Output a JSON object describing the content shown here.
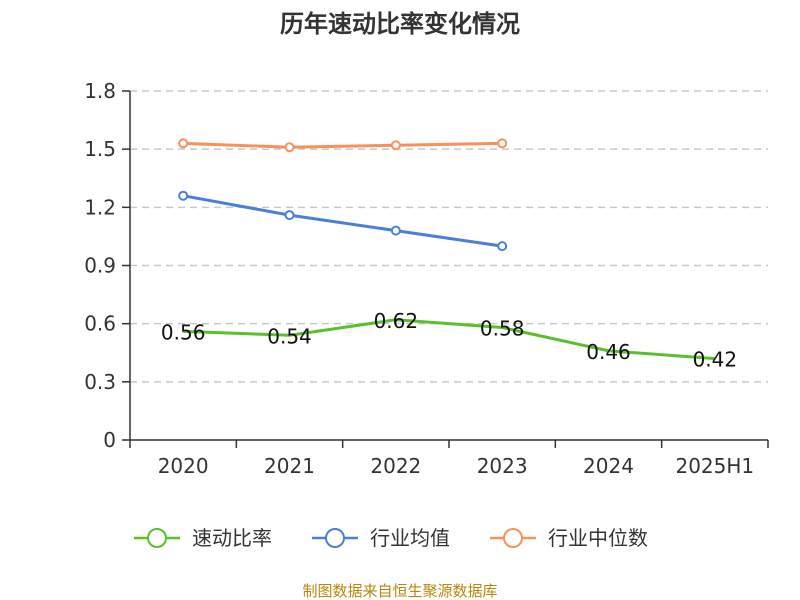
{
  "chart_data": {
    "type": "line",
    "title": "历年速动比率变化情况",
    "categories": [
      "2020",
      "2021",
      "2022",
      "2023",
      "2024",
      "2025H1"
    ],
    "ylim": [
      0,
      1.8
    ],
    "yticks": [
      "0",
      "0.3",
      "0.6",
      "0.9",
      "1.2",
      "1.5",
      "1.8"
    ],
    "grid": true,
    "legend_position": "bottom",
    "series": [
      {
        "name": "速动比率",
        "color": "#5cbf2a",
        "values": [
          0.56,
          0.54,
          0.62,
          0.58,
          0.46,
          0.42
        ],
        "labels": [
          "0.56",
          "0.54",
          "0.62",
          "0.58",
          "0.46",
          "0.42"
        ],
        "markers": false
      },
      {
        "name": "行业均值",
        "color": "#4a7fd8",
        "values": [
          1.26,
          1.16,
          1.08,
          1.0,
          null,
          null
        ],
        "markers": true
      },
      {
        "name": "行业中位数",
        "color": "#f7915a",
        "values": [
          1.53,
          1.51,
          1.52,
          1.53,
          null,
          null
        ],
        "markers": true
      }
    ]
  },
  "source": "制图数据来自恒生聚源数据库"
}
